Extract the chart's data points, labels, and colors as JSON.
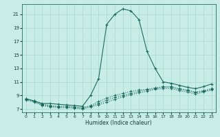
{
  "xlabel": "Humidex (Indice chaleur)",
  "bg_color": "#c8ece6",
  "line_color": "#1a6b5e",
  "grid_color": "#aad9d0",
  "xlim": [
    -0.5,
    23.5
  ],
  "ylim": [
    6.5,
    22.5
  ],
  "xticks": [
    0,
    1,
    2,
    3,
    4,
    5,
    6,
    7,
    8,
    9,
    10,
    11,
    12,
    13,
    14,
    15,
    16,
    17,
    18,
    19,
    20,
    21,
    22,
    23
  ],
  "yticks": [
    7,
    9,
    11,
    13,
    15,
    17,
    19,
    21
  ],
  "lines": [
    {
      "x": [
        0,
        1,
        2,
        3,
        4,
        5,
        6,
        7,
        8,
        9,
        10,
        11,
        12,
        13,
        14,
        15,
        16,
        17,
        18,
        19,
        20,
        21,
        22,
        23
      ],
      "y": [
        8.5,
        8.2,
        7.8,
        7.8,
        7.7,
        7.6,
        7.5,
        7.4,
        9.0,
        11.5,
        19.5,
        21.0,
        21.8,
        21.5,
        20.2,
        15.5,
        13.0,
        11.0,
        10.8,
        10.5,
        10.2,
        10.0,
        10.3,
        10.7
      ],
      "ls": "-"
    },
    {
      "x": [
        0,
        1,
        2,
        3,
        4,
        5,
        6,
        7,
        8,
        9,
        10,
        11,
        12,
        13,
        14,
        15,
        16,
        17,
        18,
        19,
        20,
        21,
        22,
        23
      ],
      "y": [
        8.5,
        8.2,
        7.7,
        7.5,
        7.4,
        7.4,
        7.3,
        7.2,
        7.5,
        8.1,
        8.6,
        9.0,
        9.3,
        9.6,
        9.8,
        9.9,
        10.1,
        10.3,
        10.3,
        10.0,
        9.8,
        9.5,
        9.7,
        10.0
      ],
      "ls": ":"
    },
    {
      "x": [
        0,
        1,
        2,
        3,
        4,
        5,
        6,
        7,
        8,
        9,
        10,
        11,
        12,
        13,
        14,
        15,
        16,
        17,
        18,
        19,
        20,
        21,
        22,
        23
      ],
      "y": [
        8.4,
        8.1,
        7.6,
        7.4,
        7.3,
        7.3,
        7.2,
        7.1,
        7.4,
        7.8,
        8.3,
        8.7,
        9.0,
        9.3,
        9.6,
        9.8,
        10.0,
        10.2,
        10.2,
        9.9,
        9.7,
        9.4,
        9.6,
        9.9
      ],
      "ls": ":"
    },
    {
      "x": [
        0,
        1,
        2,
        3,
        4,
        5,
        6,
        7,
        8,
        9,
        10,
        11,
        12,
        13,
        14,
        15,
        16,
        17,
        18,
        19,
        20,
        21,
        22,
        23
      ],
      "y": [
        8.3,
        8.0,
        7.5,
        7.3,
        7.2,
        7.2,
        7.1,
        7.0,
        7.3,
        7.6,
        8.0,
        8.4,
        8.8,
        9.1,
        9.4,
        9.6,
        9.9,
        10.0,
        10.0,
        9.7,
        9.5,
        9.2,
        9.5,
        9.8
      ],
      "ls": ":"
    }
  ]
}
